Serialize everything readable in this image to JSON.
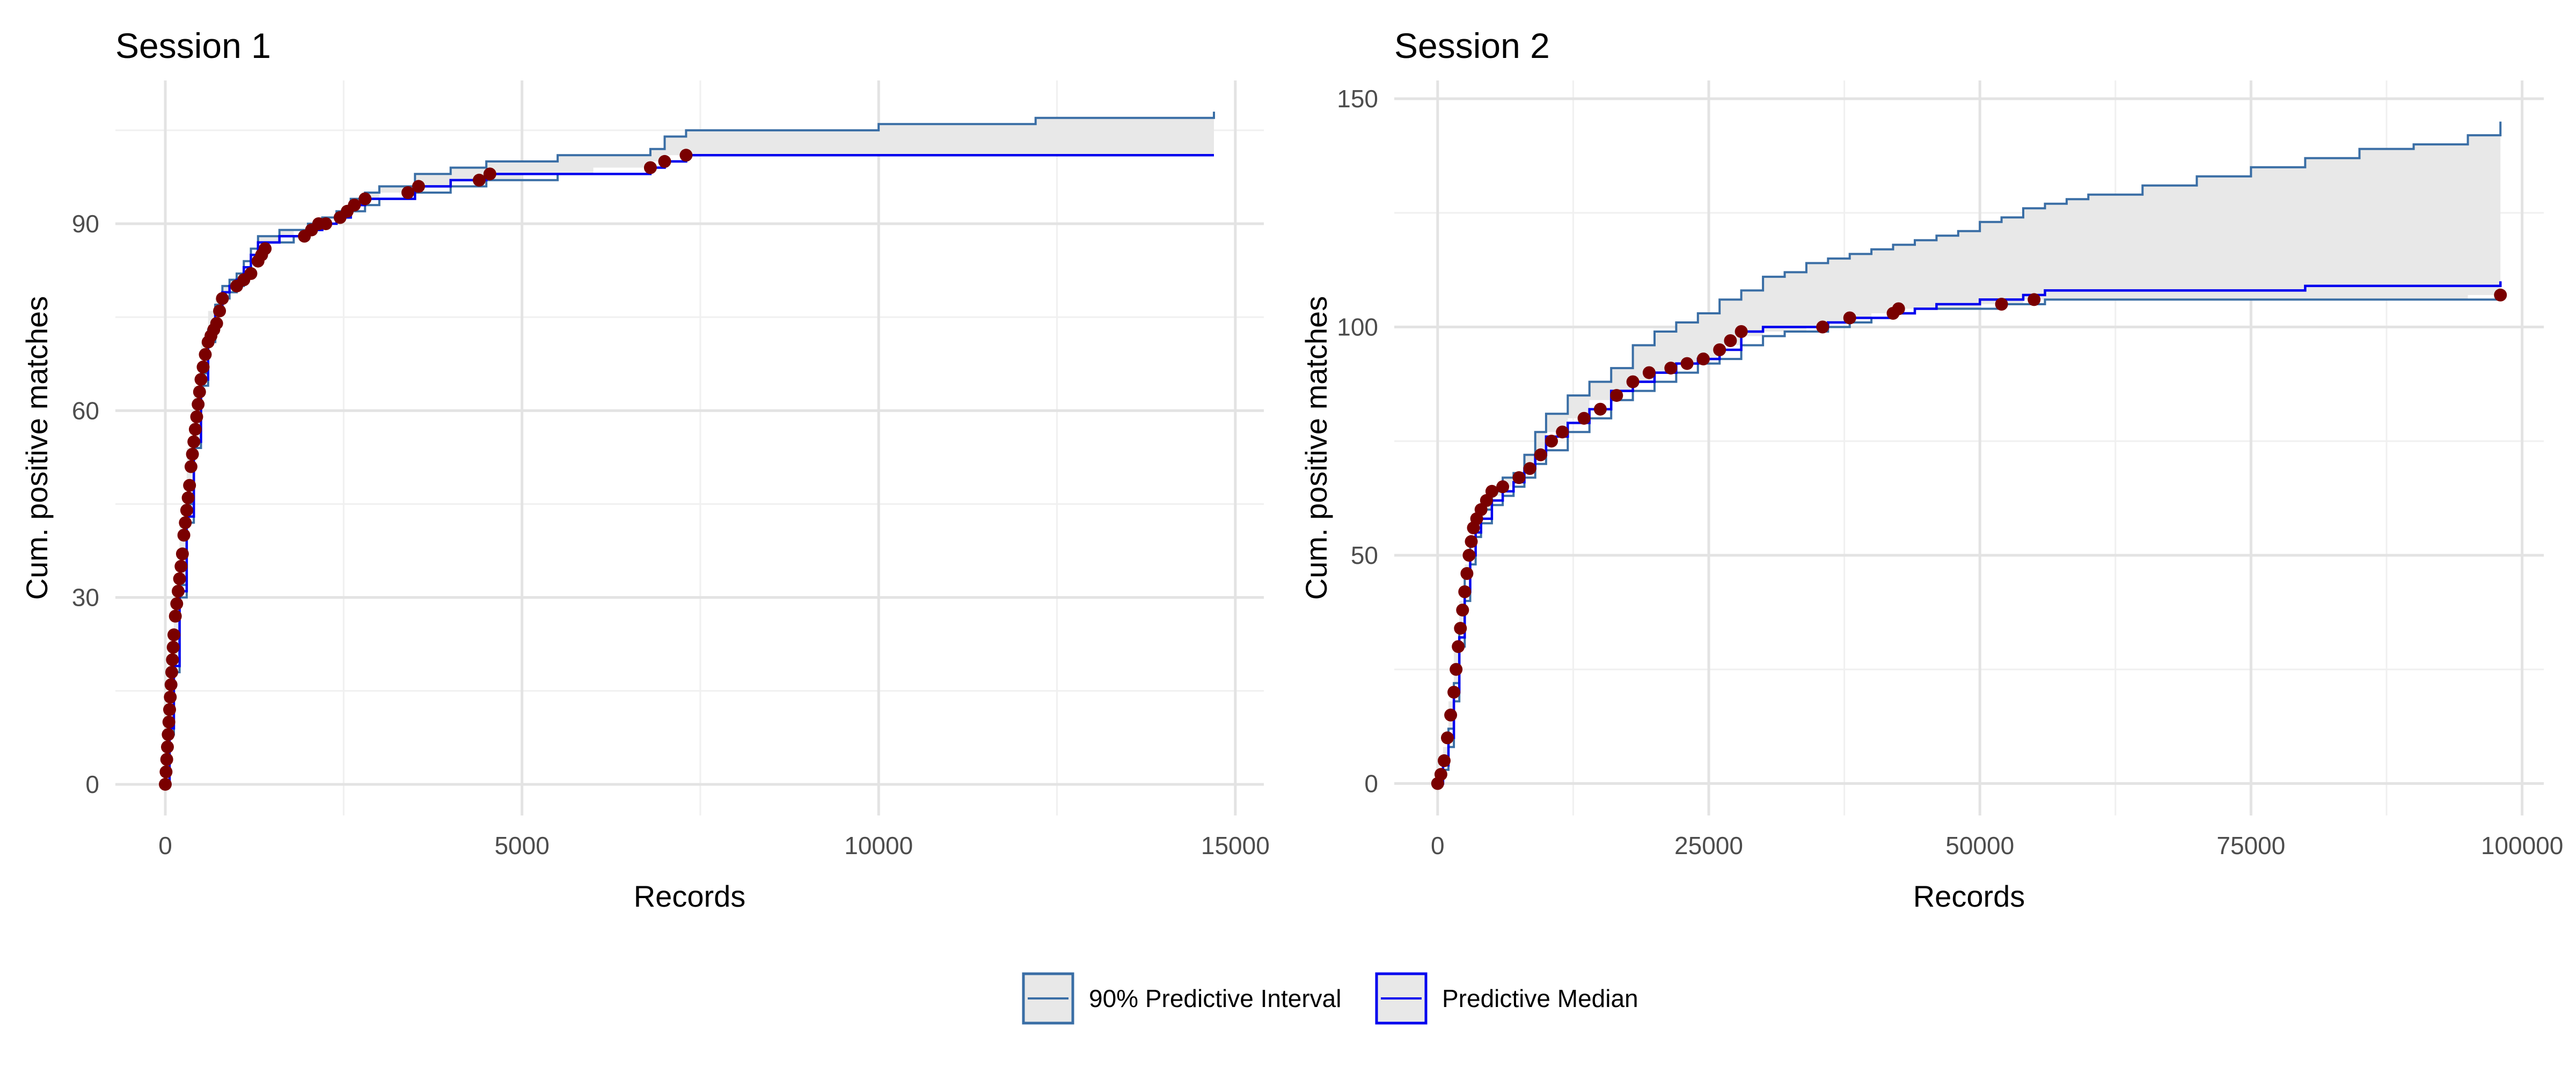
{
  "colors": {
    "interval_line": "#3a6ea5",
    "interval_fill": "#e8e8e8",
    "median_line": "#0000ee",
    "points": "#7a0000",
    "grid_major": "#e3e3e3",
    "grid_minor": "#f0f0f0"
  },
  "legend": {
    "interval_label": "90% Predictive Interval",
    "median_label": "Predictive Median",
    "placement": "bottom"
  },
  "chart_data": [
    {
      "type": "line",
      "title": "Session 1",
      "xlabel": "Records",
      "ylabel": "Cum. positive matches",
      "xlim": [
        -700,
        15400
      ],
      "ylim": [
        -5,
        113
      ],
      "xticks": [
        0,
        5000,
        10000,
        15000
      ],
      "xtick_labels": [
        "0",
        "5000",
        "10000",
        "15000"
      ],
      "yticks": [
        0,
        30,
        60,
        90
      ],
      "ytick_labels": [
        "0",
        "30",
        "60",
        "90"
      ],
      "grid": true,
      "series": [
        {
          "name": "90% Predictive Interval",
          "role": "upper",
          "x": [
            0,
            60,
            120,
            200,
            300,
            400,
            500,
            600,
            700,
            800,
            900,
            1000,
            1100,
            1200,
            1300,
            1400,
            1600,
            1800,
            2000,
            2200,
            2400,
            2600,
            2800,
            3000,
            3500,
            4000,
            4500,
            5000,
            5500,
            6000,
            6800,
            7000,
            7300,
            8000,
            9000,
            9800,
            10000,
            11000,
            12000,
            12200,
            13000,
            14000,
            14700
          ],
          "y": [
            0,
            10,
            20,
            32,
            45,
            57,
            66,
            73,
            77,
            80,
            81,
            82,
            84,
            86,
            88,
            88,
            89,
            89,
            90,
            91,
            92,
            94,
            95,
            96,
            98,
            99,
            100,
            100,
            101,
            101,
            102,
            104,
            105,
            105,
            105,
            105,
            106,
            106,
            106,
            107,
            107,
            107,
            108
          ]
        },
        {
          "name": "90% Predictive Interval",
          "role": "lower",
          "x": [
            0,
            60,
            120,
            200,
            300,
            400,
            500,
            600,
            700,
            800,
            900,
            1000,
            1100,
            1200,
            1300,
            1400,
            1600,
            1800,
            2000,
            2200,
            2400,
            2600,
            2800,
            3000,
            3500,
            4000,
            4500,
            5000,
            5500,
            6000,
            6800,
            7000,
            7300,
            8000,
            9000,
            9800,
            10000,
            11000,
            12000,
            12200,
            13000,
            14000,
            14700
          ],
          "y": [
            0,
            8,
            18,
            30,
            42,
            54,
            64,
            71,
            76,
            78,
            79,
            80,
            82,
            84,
            86,
            87,
            87,
            88,
            89,
            90,
            91,
            92,
            93,
            94,
            95,
            96,
            97,
            97,
            98,
            98,
            99,
            100,
            101,
            101,
            101,
            101,
            101,
            101,
            101,
            101,
            101,
            101,
            101
          ]
        },
        {
          "name": "Predictive Median",
          "role": "median",
          "x": [
            0,
            60,
            120,
            200,
            300,
            400,
            500,
            600,
            700,
            800,
            900,
            1000,
            1100,
            1200,
            1300,
            1400,
            1600,
            1800,
            2000,
            2200,
            2400,
            2600,
            2800,
            3000,
            3500,
            4000,
            4500,
            5000,
            5500,
            6000,
            6800,
            7000,
            7300,
            8000,
            9000,
            9800,
            10000,
            11000,
            12000,
            12200,
            13000,
            14000,
            14700
          ],
          "y": [
            0,
            9,
            19,
            31,
            43,
            55,
            65,
            72,
            76,
            79,
            80,
            81,
            83,
            85,
            87,
            87,
            88,
            88,
            89,
            90,
            91,
            93,
            94,
            94,
            96,
            97,
            98,
            98,
            98,
            98,
            99,
            100,
            101,
            101,
            101,
            101,
            101,
            101,
            101,
            101,
            101,
            101,
            101
          ]
        },
        {
          "name": "",
          "role": "points",
          "type": "scatter",
          "x": [
            0,
            10,
            20,
            30,
            40,
            50,
            60,
            70,
            80,
            90,
            100,
            110,
            120,
            140,
            160,
            180,
            200,
            220,
            240,
            260,
            280,
            300,
            320,
            340,
            360,
            380,
            400,
            420,
            440,
            460,
            480,
            500,
            530,
            560,
            600,
            640,
            680,
            720,
            760,
            800,
            1000,
            1100,
            1200,
            1300,
            1350,
            1400,
            1950,
            2050,
            2150,
            2250,
            2450,
            2550,
            2650,
            2800,
            3400,
            3550,
            4400,
            4550,
            6800,
            7000,
            7300
          ],
          "y": [
            0,
            2,
            4,
            6,
            8,
            10,
            12,
            14,
            16,
            18,
            20,
            22,
            24,
            27,
            29,
            31,
            33,
            35,
            37,
            40,
            42,
            44,
            46,
            48,
            51,
            53,
            55,
            57,
            59,
            61,
            63,
            65,
            67,
            69,
            71,
            72,
            73,
            74,
            76,
            78,
            80,
            81,
            82,
            84,
            85,
            86,
            88,
            89,
            90,
            90,
            91,
            92,
            93,
            94,
            95,
            96,
            97,
            98,
            99,
            100,
            101
          ]
        }
      ]
    },
    {
      "type": "line",
      "title": "Session 2",
      "xlabel": "Records",
      "ylabel": "Cum. positive matches",
      "xlim": [
        -4000,
        102000
      ],
      "ylim": [
        -7,
        154
      ],
      "xticks": [
        0,
        25000,
        50000,
        75000,
        100000
      ],
      "xtick_labels": [
        "0",
        "25000",
        "50000",
        "75000",
        "100000"
      ],
      "yticks": [
        0,
        50,
        100,
        150
      ],
      "ytick_labels": [
        "0",
        "50",
        "100",
        "150"
      ],
      "grid": true,
      "series": [
        {
          "name": "90% Predictive Interval",
          "role": "upper",
          "x": [
            0,
            500,
            1000,
            1500,
            2000,
            2500,
            3000,
            3500,
            4000,
            5000,
            6000,
            7000,
            8000,
            9000,
            10000,
            12000,
            14000,
            16000,
            18000,
            20000,
            22000,
            24000,
            26000,
            28000,
            30000,
            32000,
            34000,
            36000,
            38000,
            40000,
            42000,
            44000,
            46000,
            48000,
            50000,
            52000,
            54000,
            56000,
            58000,
            60000,
            65000,
            70000,
            75000,
            80000,
            85000,
            90000,
            95000,
            98000
          ],
          "y": [
            0,
            5,
            12,
            22,
            35,
            45,
            52,
            57,
            60,
            64,
            67,
            68,
            72,
            77,
            81,
            85,
            88,
            91,
            96,
            99,
            101,
            103,
            106,
            108,
            111,
            112,
            114,
            115,
            116,
            117,
            118,
            119,
            120,
            121,
            123,
            124,
            126,
            127,
            128,
            129,
            131,
            133,
            135,
            137,
            139,
            140,
            142,
            145
          ]
        },
        {
          "name": "90% Predictive Interval",
          "role": "lower",
          "x": [
            0,
            500,
            1000,
            1500,
            2000,
            2500,
            3000,
            3500,
            4000,
            5000,
            6000,
            7000,
            8000,
            9000,
            10000,
            12000,
            14000,
            16000,
            18000,
            20000,
            22000,
            24000,
            26000,
            28000,
            30000,
            32000,
            34000,
            36000,
            38000,
            40000,
            42000,
            44000,
            46000,
            48000,
            50000,
            52000,
            54000,
            56000,
            58000,
            60000,
            65000,
            70000,
            75000,
            80000,
            85000,
            90000,
            95000,
            98000
          ],
          "y": [
            0,
            3,
            8,
            18,
            30,
            40,
            48,
            54,
            57,
            61,
            63,
            65,
            67,
            70,
            73,
            77,
            80,
            84,
            86,
            88,
            90,
            92,
            93,
            96,
            98,
            99,
            99,
            100,
            101,
            102,
            103,
            104,
            104,
            104,
            104,
            105,
            105,
            106,
            106,
            106,
            106,
            106,
            106,
            106,
            106,
            106,
            106,
            107
          ]
        },
        {
          "name": "Predictive Median",
          "role": "median",
          "x": [
            0,
            500,
            1000,
            1500,
            2000,
            2500,
            3000,
            3500,
            4000,
            5000,
            6000,
            7000,
            8000,
            9000,
            10000,
            12000,
            14000,
            16000,
            18000,
            20000,
            22000,
            24000,
            26000,
            28000,
            30000,
            32000,
            34000,
            36000,
            38000,
            40000,
            42000,
            44000,
            46000,
            48000,
            50000,
            52000,
            54000,
            56000,
            58000,
            60000,
            65000,
            70000,
            75000,
            80000,
            85000,
            90000,
            95000,
            98000
          ],
          "y": [
            0,
            4,
            10,
            20,
            32,
            42,
            50,
            55,
            58,
            62,
            64,
            66,
            69,
            72,
            76,
            79,
            82,
            86,
            88,
            90,
            92,
            93,
            95,
            99,
            100,
            100,
            100,
            101,
            102,
            102,
            103,
            104,
            105,
            105,
            106,
            106,
            107,
            108,
            108,
            108,
            108,
            108,
            108,
            109,
            109,
            109,
            109,
            110
          ]
        },
        {
          "name": "",
          "role": "points",
          "type": "scatter",
          "x": [
            0,
            300,
            600,
            900,
            1200,
            1500,
            1700,
            1900,
            2100,
            2300,
            2500,
            2700,
            2900,
            3100,
            3300,
            3600,
            4000,
            4500,
            5000,
            6000,
            7500,
            8500,
            9500,
            10500,
            11500,
            13500,
            15000,
            16500,
            18000,
            19500,
            21500,
            23000,
            24500,
            26000,
            27000,
            28000,
            35500,
            38000,
            42000,
            42500,
            52000,
            55000,
            98000
          ],
          "y": [
            0,
            2,
            5,
            10,
            15,
            20,
            25,
            30,
            34,
            38,
            42,
            46,
            50,
            53,
            56,
            58,
            60,
            62,
            64,
            65,
            67,
            69,
            72,
            75,
            77,
            80,
            82,
            85,
            88,
            90,
            91,
            92,
            93,
            95,
            97,
            99,
            100,
            102,
            103,
            104,
            105,
            106,
            107
          ]
        }
      ]
    }
  ]
}
